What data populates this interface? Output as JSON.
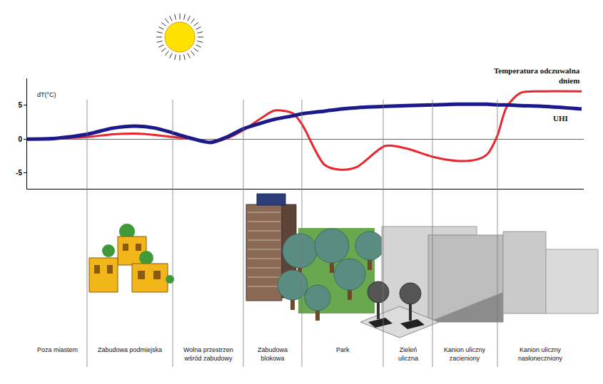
{
  "chart_data": {
    "type": "line",
    "ylabel": "dT(°C)",
    "x": [
      0,
      40,
      84,
      120,
      152,
      180,
      204,
      230,
      257,
      280,
      303,
      330,
      347,
      372,
      385,
      417,
      440,
      462,
      502,
      532,
      568,
      602,
      630,
      645,
      659,
      672,
      692,
      722,
      777
    ],
    "series": [
      {
        "name": "Temperatura odczuwalna dniem",
        "color": "#e8262d",
        "values": [
          0,
          0.1,
          0.3,
          0.7,
          0.8,
          0.6,
          0.3,
          0,
          -0.5,
          0.1,
          1.3,
          3.2,
          4.2,
          3.8,
          2.2,
          -3.8,
          -4.5,
          -4.1,
          -1.0,
          -1.4,
          -2.6,
          -3.2,
          -3.0,
          -2.2,
          0.5,
          4.7,
          6.8,
          7.0,
          7.0
        ]
      },
      {
        "name": "UHI",
        "color": "#1c1a8a",
        "values": [
          0,
          0.1,
          0.7,
          1.6,
          1.9,
          1.6,
          0.9,
          0.1,
          -0.5,
          0.3,
          1.5,
          2.4,
          2.9,
          3.4,
          3.7,
          4.1,
          4.4,
          4.6,
          4.8,
          4.9,
          5.0,
          5.1,
          5.1,
          5.1,
          5.0,
          5.0,
          4.9,
          4.8,
          4.4
        ]
      }
    ],
    "xlim": [
      0,
      780
    ],
    "ylim": [
      -7.3,
      8.9
    ],
    "yticks": [
      -5,
      0,
      5
    ],
    "grid": false,
    "tick_labels": "y",
    "regions": [
      {
        "label": "Poza miastem",
        "start": 0,
        "end": 84
      },
      {
        "label": "Zabudowa podmiejska",
        "start": 84,
        "end": 204
      },
      {
        "label": "Wolna przestrzen wśród zabudowy",
        "start": 204,
        "end": 303
      },
      {
        "label": "Zabudowa blokowa",
        "start": 303,
        "end": 385
      },
      {
        "label": "Park",
        "start": 385,
        "end": 499
      },
      {
        "label": "Zieleń uliczna",
        "start": 499,
        "end": 568
      },
      {
        "label": "Kanion uliczny zacieniony",
        "start": 568,
        "end": 659
      },
      {
        "label": "Kanion uliczny nasłoneczniony",
        "start": 659,
        "end": 780
      }
    ]
  }
}
